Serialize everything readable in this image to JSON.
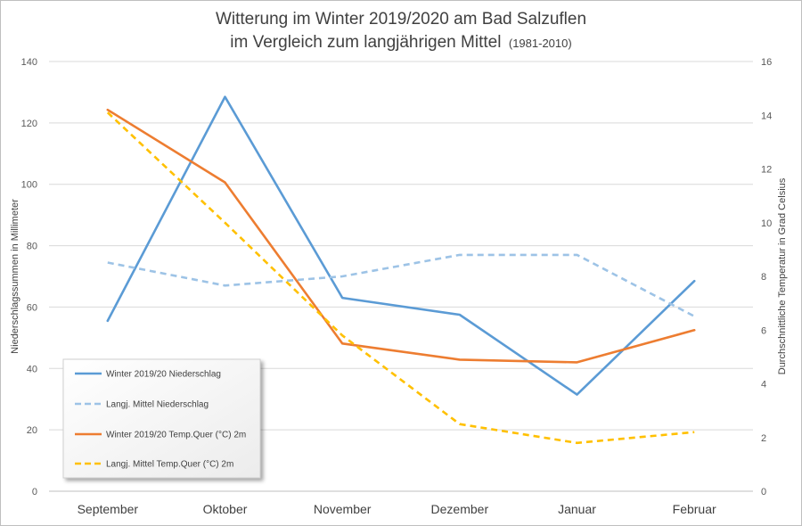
{
  "chart_data": {
    "type": "line",
    "title_line1": "Witterung im Winter 2019/2020 am Bad Salzuflen",
    "title_line2": "im Vergleich zum langjährigen Mittel",
    "title_line2_suffix": "(1981-2010)",
    "ylabel_left": "Niederschlagssummen in Millimeter",
    "ylabel_right": "Durchschnittliche Temperatur in Grad Celsius",
    "categories": [
      "September",
      "Oktober",
      "November",
      "Dezember",
      "Januar",
      "Februar"
    ],
    "ylim_left": [
      0,
      140
    ],
    "yticks_left": [
      "0",
      "20",
      "40",
      "60",
      "80",
      "100",
      "120",
      "140"
    ],
    "ylim_right": [
      0,
      16
    ],
    "yticks_right": [
      "0",
      "2",
      "4",
      "6",
      "8",
      "10",
      "12",
      "14",
      "16"
    ],
    "grid": true,
    "legend_position": "bottom-left",
    "series": [
      {
        "name": "Winter 2019/20 Niederschlag",
        "axis": "left",
        "style": "solid",
        "color": "#5b9bd5",
        "values": [
          55.5,
          128.5,
          63,
          57.5,
          31.5,
          68.5
        ]
      },
      {
        "name": "Langj. Mittel Niederschlag",
        "axis": "left",
        "style": "dashed",
        "color": "#9dc3e6",
        "values": [
          74.5,
          67,
          70,
          77,
          77,
          57
        ]
      },
      {
        "name": "Winter 2019/20 Temp.Quer (°C) 2m",
        "axis": "right",
        "style": "solid",
        "color": "#ed7d31",
        "values": [
          14.2,
          11.5,
          5.5,
          4.9,
          4.8,
          6.0
        ]
      },
      {
        "name": "Langj. Mittel Temp.Quer (°C) 2m",
        "axis": "right",
        "style": "dashed",
        "color": "#ffc000",
        "values": [
          14.1,
          10.0,
          5.8,
          2.5,
          1.8,
          2.2
        ]
      }
    ]
  }
}
